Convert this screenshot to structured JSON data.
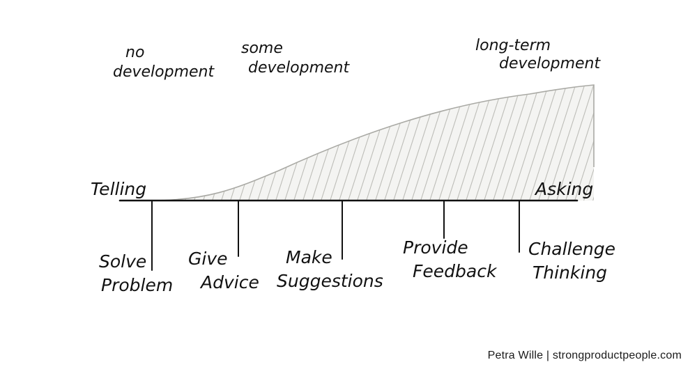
{
  "development_labels": {
    "no": [
      "no",
      "development"
    ],
    "some": [
      "some",
      "development"
    ],
    "long_term": [
      "long-term",
      "development"
    ]
  },
  "axis": {
    "left_label": "Telling",
    "right_label": "Asking"
  },
  "steps": [
    {
      "lines": [
        "Solve",
        "Problem"
      ]
    },
    {
      "lines": [
        "Give",
        "Advice"
      ]
    },
    {
      "lines": [
        "Make",
        "Suggestions"
      ]
    },
    {
      "lines": [
        "Provide",
        "Feedback"
      ]
    },
    {
      "lines": [
        "Challenge",
        "Thinking"
      ]
    }
  ],
  "credit": "Petra Wille | strongproductpeople.com"
}
